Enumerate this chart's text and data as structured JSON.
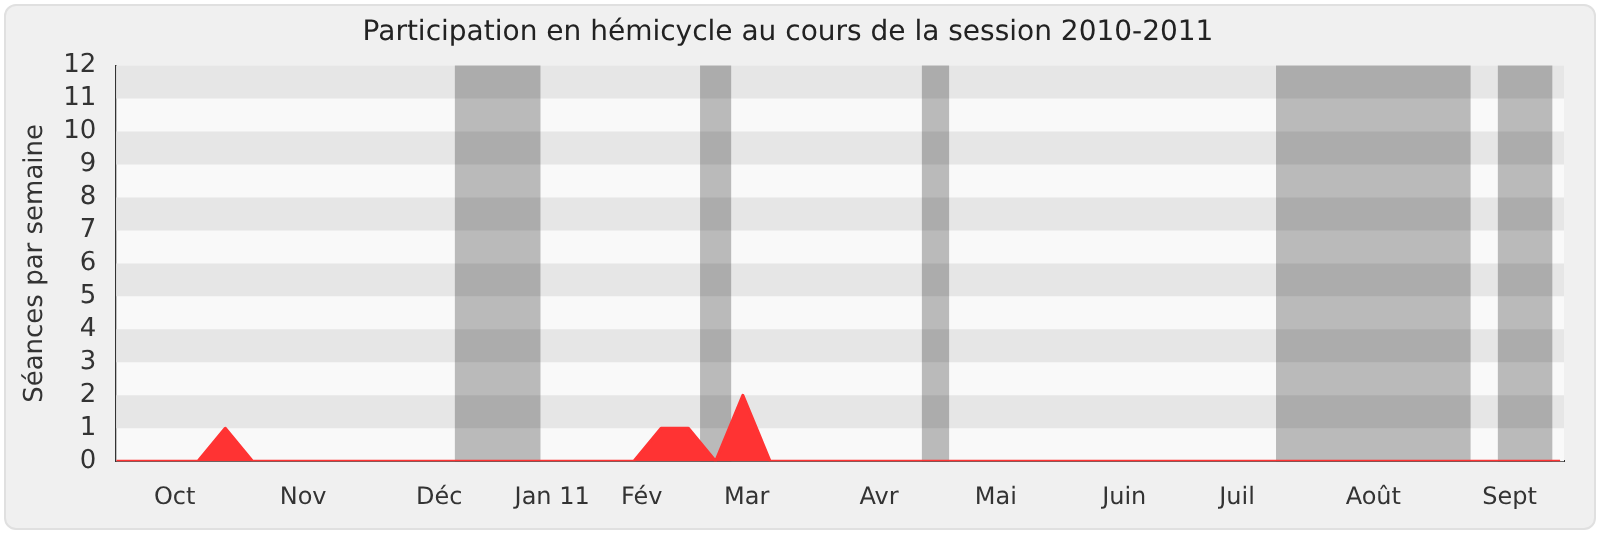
{
  "chart_data": {
    "type": "area",
    "title": "Participation en hémicycle au cours de la session 2010-2011",
    "ylabel": "Séances par semaine",
    "x": [
      "2010-09-20",
      "2010-09-27",
      "2010-10-04",
      "2010-10-11",
      "2010-10-18",
      "2010-10-25",
      "2010-11-01",
      "2010-11-08",
      "2010-11-15",
      "2010-11-22",
      "2010-11-29",
      "2010-12-06",
      "2010-12-13",
      "2010-12-20",
      "2010-12-27",
      "2011-01-03",
      "2011-01-10",
      "2011-01-17",
      "2011-01-24",
      "2011-01-31",
      "2011-02-07",
      "2011-02-14",
      "2011-02-21",
      "2011-02-28",
      "2011-03-07",
      "2011-03-14",
      "2011-03-21",
      "2011-03-28",
      "2011-04-04",
      "2011-04-11",
      "2011-04-18",
      "2011-04-25",
      "2011-05-02",
      "2011-05-09",
      "2011-05-16",
      "2011-05-23",
      "2011-05-30",
      "2011-06-06",
      "2011-06-13",
      "2011-06-20",
      "2011-06-27",
      "2011-07-04",
      "2011-07-11",
      "2011-07-18",
      "2011-07-25",
      "2011-08-01",
      "2011-08-08",
      "2011-08-15",
      "2011-08-22",
      "2011-08-29",
      "2011-09-05",
      "2011-09-12",
      "2011-09-19",
      "2011-09-26"
    ],
    "series": [
      {
        "color": "#ff3333",
        "values": [
          0,
          0,
          0,
          0,
          1,
          0,
          0,
          0,
          0,
          0,
          0,
          0,
          0,
          0,
          0,
          0,
          0,
          0,
          0,
          0,
          1,
          1,
          0,
          2,
          0,
          0,
          0,
          0,
          0,
          0,
          0,
          0,
          0,
          0,
          0,
          0,
          0,
          0,
          0,
          0,
          0,
          0,
          0,
          0,
          0,
          0,
          0,
          0,
          0,
          0,
          0,
          0,
          0,
          0
        ]
      }
    ],
    "xlim": [
      "2010-09-20",
      "2011-09-27"
    ],
    "xticks": [
      {
        "value": "2010-10-05",
        "label": "Oct"
      },
      {
        "value": "2010-11-07",
        "label": "Nov"
      },
      {
        "value": "2010-12-12",
        "label": "Déc"
      },
      {
        "value": "2011-01-10",
        "label": "Jan 11"
      },
      {
        "value": "2011-02-02",
        "label": "Fév"
      },
      {
        "value": "2011-03-01",
        "label": "Mar"
      },
      {
        "value": "2011-04-04",
        "label": "Avr"
      },
      {
        "value": "2011-05-04",
        "label": "Mai"
      },
      {
        "value": "2011-06-06",
        "label": "Juin"
      },
      {
        "value": "2011-07-05",
        "label": "Juil"
      },
      {
        "value": "2011-08-09",
        "label": "Août"
      },
      {
        "value": "2011-09-13",
        "label": "Sept"
      }
    ],
    "ylim": [
      0,
      12
    ],
    "yticks": [
      0,
      1,
      2,
      3,
      4,
      5,
      6,
      7,
      8,
      9,
      10,
      11,
      12
    ],
    "bands": [
      {
        "axis": "x",
        "from": "2010-12-16",
        "to": "2011-01-07"
      },
      {
        "axis": "x",
        "from": "2011-02-17",
        "to": "2011-02-25"
      },
      {
        "axis": "x",
        "from": "2011-04-15",
        "to": "2011-04-22"
      },
      {
        "axis": "x",
        "from": "2011-07-15",
        "to": "2011-09-03"
      },
      {
        "axis": "x",
        "from": "2011-09-10",
        "to": "2011-09-24"
      }
    ],
    "legend": false
  }
}
